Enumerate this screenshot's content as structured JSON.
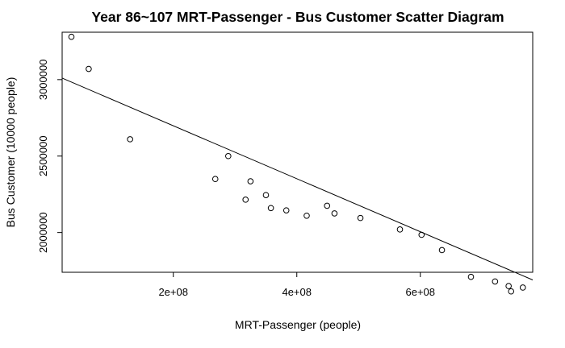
{
  "chart_data": {
    "type": "scatter",
    "title": "Year 86~107 MRT-Passenger  -  Bus Customer Scatter Diagram",
    "xlabel": "MRT-Passenger (people)",
    "ylabel": "Bus Customer (10000 people)",
    "xlim": [
      20000000,
      782000000
    ],
    "ylim": [
      1740000,
      3310000
    ],
    "x_ticks": [
      200000000,
      400000000,
      600000000
    ],
    "x_tick_labels": [
      "2e+08",
      "4e+08",
      "6e+08"
    ],
    "y_ticks": [
      2000000,
      2500000,
      3000000
    ],
    "y_tick_labels": [
      "2000000",
      "2500000",
      "3000000"
    ],
    "grid": false,
    "legend": "none",
    "series": [
      {
        "x": [
          35000000,
          63000000,
          130000000,
          268000000,
          289000000,
          317000000,
          325000000,
          350000000,
          358000000,
          383000000,
          416000000,
          449000000,
          461000000,
          503000000,
          567000000,
          602000000,
          635000000,
          682000000,
          721000000,
          743000000,
          747000000,
          766000000
        ],
        "y": [
          3280000,
          3070000,
          2610000,
          2350000,
          2500000,
          2215000,
          2335000,
          2245000,
          2160000,
          2145000,
          2110000,
          2175000,
          2125000,
          2095000,
          2020000,
          1985000,
          1885000,
          1710000,
          1680000,
          1650000,
          1615000,
          1640000
        ]
      }
    ],
    "regression_line": {
      "x": [
        20000000,
        782000000
      ],
      "y": [
        3010000,
        1690000
      ]
    }
  }
}
